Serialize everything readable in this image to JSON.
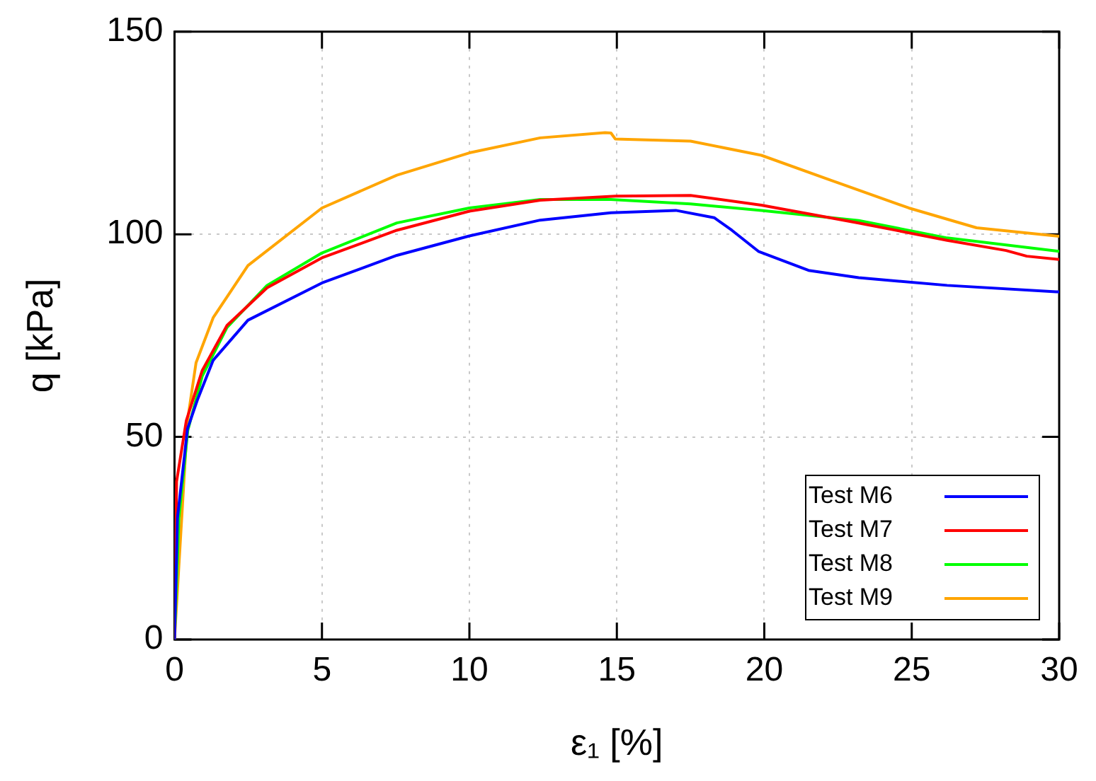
{
  "chart_data": {
    "type": "line",
    "xlabel": "ε₁ [%]",
    "ylabel": "q [kPa]",
    "xlim": [
      0,
      30
    ],
    "xticks": [
      0,
      5,
      10,
      15,
      20,
      25,
      30
    ],
    "ylim": [
      0,
      150
    ],
    "yticks": [
      0,
      50,
      100,
      150
    ],
    "grid": true,
    "legend": "bottom right",
    "marker": "none",
    "line_style": "solid",
    "series": [
      {
        "name": "Test M6",
        "color": "#0000ff",
        "x": [
          0,
          0.1,
          0.44,
          0.77,
          1.31,
          2.49,
          5,
          7.54,
          10,
          12.4,
          14.8,
          17,
          18.3,
          18.9,
          19.8,
          21.5,
          23.2,
          26.2,
          29.9,
          30
        ],
        "values": [
          0,
          30,
          52,
          59,
          68.9,
          78.8,
          88,
          94.8,
          99.6,
          103.5,
          105.3,
          105.9,
          104.1,
          101,
          95.8,
          91.1,
          89.3,
          87.4,
          85.8,
          85.8
        ]
      },
      {
        "name": "Test M7",
        "color": "#ff0000",
        "x": [
          0,
          0.07,
          0.4,
          0.94,
          1.78,
          3.14,
          5,
          7.54,
          10,
          12.4,
          14.96,
          17.5,
          19.9,
          23.2,
          26.2,
          28.2,
          28.9,
          30
        ],
        "values": [
          0,
          39,
          54,
          66.4,
          77.5,
          86.8,
          94.2,
          101,
          105.7,
          108.4,
          109.4,
          109.6,
          107.2,
          102.8,
          98.5,
          96,
          94.6,
          93.8
        ]
      },
      {
        "name": "Test M8",
        "color": "#00ff00",
        "x": [
          0,
          0.15,
          0.45,
          0.94,
          1.78,
          3.14,
          5,
          7.54,
          10,
          12.4,
          14.8,
          17.5,
          19.9,
          23.2,
          26.2,
          30
        ],
        "values": [
          0,
          30,
          51.6,
          65,
          77,
          87.4,
          95.4,
          102.8,
          106.5,
          108.6,
          108.6,
          107.5,
          105.9,
          103.4,
          99.1,
          95.8
        ]
      },
      {
        "name": "Test M9",
        "color": "#ffa500",
        "x": [
          0,
          0.44,
          0.73,
          1.31,
          2.49,
          5,
          7.54,
          10,
          12.4,
          14.6,
          14.8,
          14.95,
          17.5,
          19.9,
          22.5,
          24.9,
          27.2,
          30
        ],
        "values": [
          0,
          54,
          68.3,
          79.4,
          92.3,
          106.5,
          114.6,
          120.1,
          123.8,
          125.1,
          125,
          123.5,
          123,
          119.5,
          112.7,
          106.5,
          101.6,
          99.5
        ]
      }
    ]
  }
}
